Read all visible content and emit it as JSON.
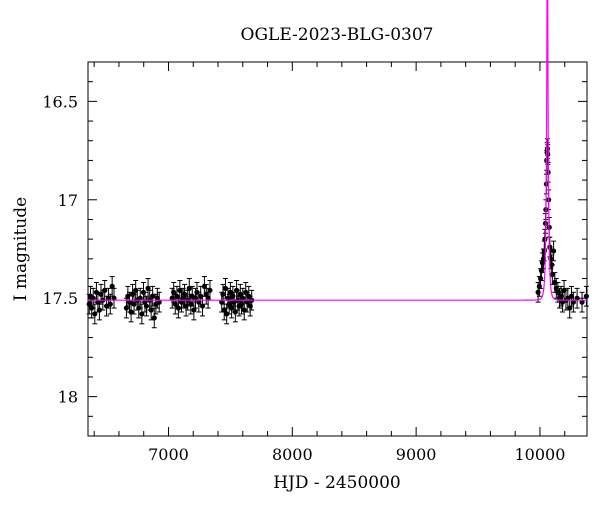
{
  "chart_data": {
    "type": "scatter",
    "title": "OGLE-2023-BLG-0307",
    "xlabel": "HJD - 2450000",
    "ylabel": "I magnitude",
    "xlim": [
      6350,
      10380
    ],
    "ylim": [
      18.2,
      16.3
    ],
    "y_inverted": true,
    "grid": false,
    "x_ticks": [
      7000,
      8000,
      9000,
      10000
    ],
    "x_tick_labels": [
      "7000",
      "8000",
      "9000",
      "10000"
    ],
    "y_ticks": [
      16.5,
      17,
      17.5,
      18
    ],
    "y_tick_labels": [
      "16.5",
      "17",
      "17.5",
      "18"
    ],
    "baseline_mag": 17.51,
    "model": {
      "type": "microlensing-fit",
      "color": "#ff00ff",
      "baseline": 17.51,
      "t0": 10060,
      "u0": 0.13,
      "tE": 14,
      "peak_mag": 16.74
    },
    "series": [
      {
        "color": "#000000",
        "error_bar": 0.05,
        "points": [
          [
            6360,
            17.53
          ],
          [
            6370,
            17.49
          ],
          [
            6380,
            17.55
          ],
          [
            6392,
            17.5
          ],
          [
            6405,
            17.58
          ],
          [
            6418,
            17.47
          ],
          [
            6430,
            17.52
          ],
          [
            6442,
            17.56
          ],
          [
            6455,
            17.48
          ],
          [
            6470,
            17.51
          ],
          [
            6485,
            17.46
          ],
          [
            6500,
            17.54
          ],
          [
            6515,
            17.5
          ],
          [
            6530,
            17.53
          ],
          [
            6545,
            17.44
          ],
          [
            6560,
            17.5
          ],
          [
            6660,
            17.55
          ],
          [
            6672,
            17.49
          ],
          [
            6685,
            17.52
          ],
          [
            6698,
            17.57
          ],
          [
            6710,
            17.48
          ],
          [
            6722,
            17.53
          ],
          [
            6735,
            17.46
          ],
          [
            6748,
            17.51
          ],
          [
            6760,
            17.55
          ],
          [
            6772,
            17.5
          ],
          [
            6785,
            17.58
          ],
          [
            6798,
            17.47
          ],
          [
            6810,
            17.52
          ],
          [
            6822,
            17.54
          ],
          [
            6835,
            17.45
          ],
          [
            6848,
            17.51
          ],
          [
            6860,
            17.56
          ],
          [
            6872,
            17.49
          ],
          [
            6885,
            17.6
          ],
          [
            6898,
            17.53
          ],
          [
            6910,
            17.5
          ],
          [
            6925,
            17.52
          ],
          [
            7030,
            17.5
          ],
          [
            7042,
            17.47
          ],
          [
            7055,
            17.53
          ],
          [
            7068,
            17.49
          ],
          [
            7080,
            17.55
          ],
          [
            7092,
            17.46
          ],
          [
            7105,
            17.52
          ],
          [
            7118,
            17.5
          ],
          [
            7130,
            17.48
          ],
          [
            7142,
            17.54
          ],
          [
            7155,
            17.51
          ],
          [
            7168,
            17.45
          ],
          [
            7180,
            17.53
          ],
          [
            7192,
            17.49
          ],
          [
            7205,
            17.56
          ],
          [
            7218,
            17.5
          ],
          [
            7230,
            17.47
          ],
          [
            7245,
            17.52
          ],
          [
            7260,
            17.49
          ],
          [
            7275,
            17.54
          ],
          [
            7290,
            17.44
          ],
          [
            7305,
            17.48
          ],
          [
            7320,
            17.5
          ],
          [
            7335,
            17.46
          ],
          [
            7430,
            17.52
          ],
          [
            7440,
            17.48
          ],
          [
            7450,
            17.56
          ],
          [
            7460,
            17.45
          ],
          [
            7470,
            17.58
          ],
          [
            7480,
            17.5
          ],
          [
            7490,
            17.53
          ],
          [
            7500,
            17.47
          ],
          [
            7510,
            17.55
          ],
          [
            7520,
            17.49
          ],
          [
            7530,
            17.52
          ],
          [
            7540,
            17.57
          ],
          [
            7550,
            17.46
          ],
          [
            7560,
            17.51
          ],
          [
            7570,
            17.54
          ],
          [
            7580,
            17.48
          ],
          [
            7590,
            17.53
          ],
          [
            7600,
            17.5
          ],
          [
            7612,
            17.56
          ],
          [
            7624,
            17.47
          ],
          [
            7636,
            17.52
          ],
          [
            7648,
            17.49
          ],
          [
            7660,
            17.54
          ],
          [
            7672,
            17.51
          ],
          [
            9985,
            17.47
          ],
          [
            9995,
            17.44
          ],
          [
            10005,
            17.4
          ],
          [
            10012,
            17.36
          ],
          [
            10020,
            17.32
          ],
          [
            10028,
            17.3
          ],
          [
            10035,
            17.26
          ],
          [
            10040,
            17.2
          ],
          [
            10045,
            17.12
          ],
          [
            10048,
            17.05
          ],
          [
            10052,
            16.92
          ],
          [
            10055,
            16.8
          ],
          [
            10058,
            16.76
          ],
          [
            10060,
            16.74
          ],
          [
            10063,
            16.77
          ],
          [
            10066,
            16.86
          ],
          [
            10070,
            17.0
          ],
          [
            10075,
            17.14
          ],
          [
            10080,
            17.24
          ],
          [
            10088,
            17.3
          ],
          [
            10095,
            17.33
          ],
          [
            10100,
            17.38
          ],
          [
            10110,
            17.26
          ],
          [
            10120,
            17.42
          ],
          [
            10132,
            17.45
          ],
          [
            10145,
            17.47
          ],
          [
            10158,
            17.5
          ],
          [
            10170,
            17.49
          ],
          [
            10182,
            17.52
          ],
          [
            10195,
            17.46
          ],
          [
            10210,
            17.51
          ],
          [
            10225,
            17.5
          ],
          [
            10240,
            17.55
          ],
          [
            10255,
            17.49
          ],
          [
            10270,
            17.52
          ],
          [
            10300,
            17.5
          ],
          [
            10340,
            17.52
          ],
          [
            10375,
            17.49
          ]
        ]
      }
    ]
  }
}
